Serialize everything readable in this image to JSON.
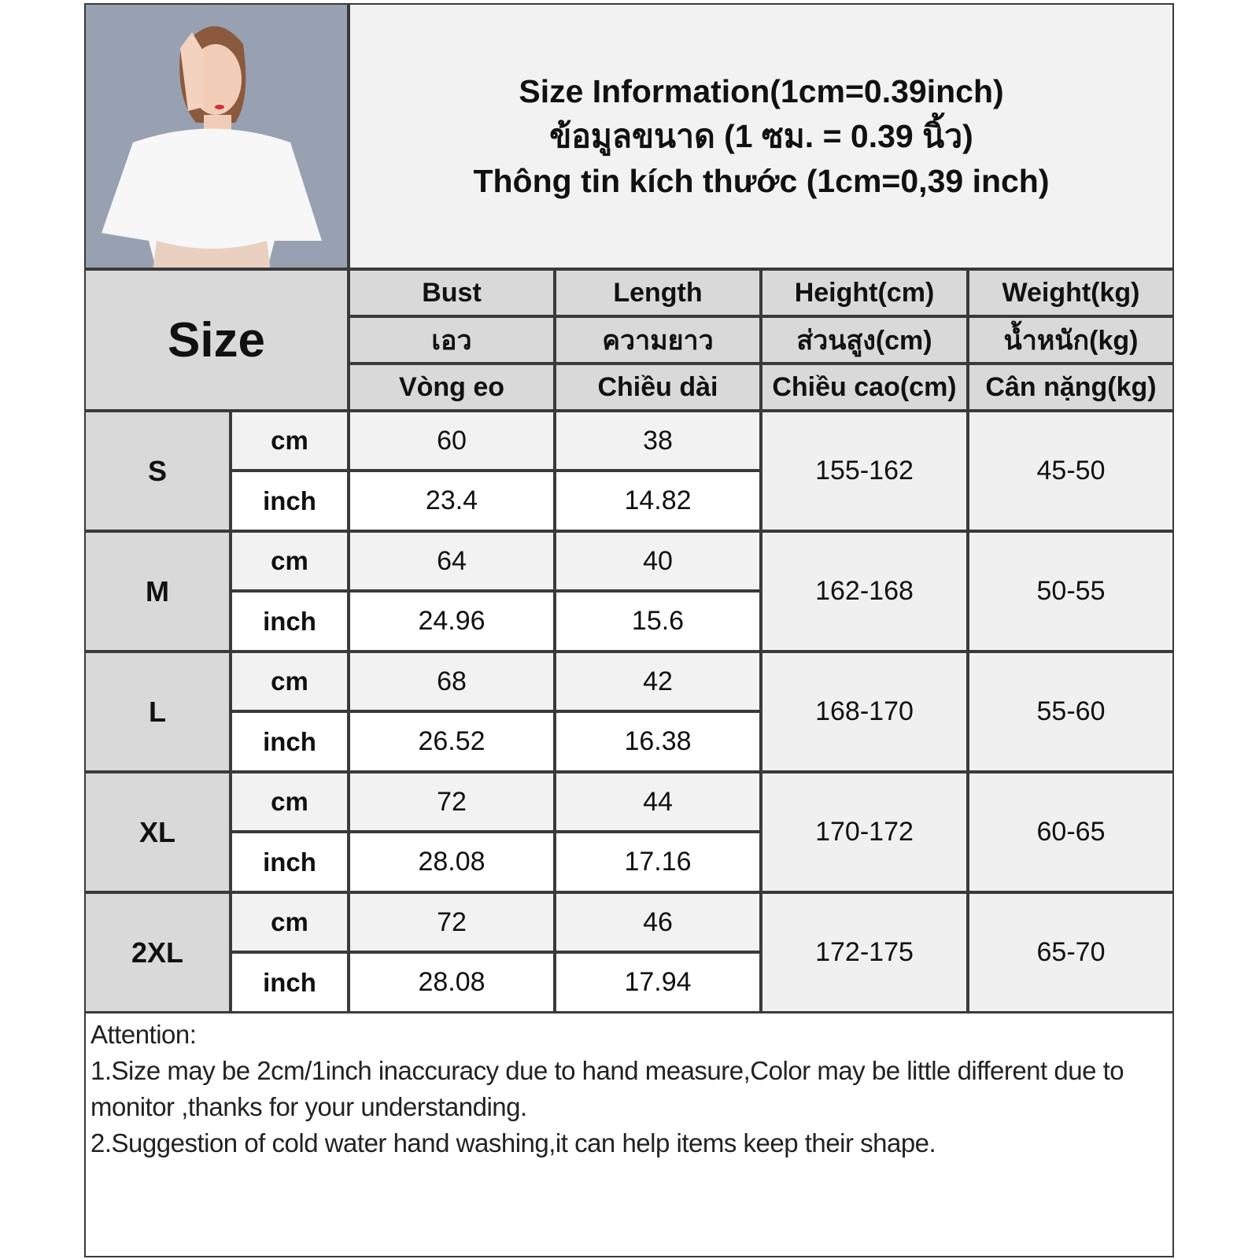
{
  "title_lines": [
    "Size Information(1cm=0.39inch)",
    "ข้อมูลขนาด (1 ซม. = 0.39 นิ้ว)",
    "Thông tin kích thước (1cm=0,39 inch)"
  ],
  "size_header": "Size",
  "columns": [
    {
      "en": "Bust",
      "th": "เอว",
      "vi": "Vòng eo"
    },
    {
      "en": "Length",
      "th": "ความยาว",
      "vi": "Chiều dài"
    },
    {
      "en": "Height(cm)",
      "th": "ส่วนสูง(cm)",
      "vi": "Chiều cao(cm)"
    },
    {
      "en": "Weight(kg)",
      "th": "น้ำหนัก(kg)",
      "vi": "Cân nặng(kg)"
    }
  ],
  "rows": [
    {
      "size": "S",
      "cm_label": "cm",
      "inch_label": "inch",
      "bust_cm": "60",
      "length_cm": "38",
      "bust_inch": "23.4",
      "length_inch": "14.82",
      "height": "155-162",
      "weight": "45-50"
    },
    {
      "size": "M",
      "cm_label": "cm",
      "inch_label": "inch",
      "bust_cm": "64",
      "length_cm": "40",
      "bust_inch": "24.96",
      "length_inch": "15.6",
      "height": "162-168",
      "weight": "50-55"
    },
    {
      "size": "L",
      "cm_label": "cm",
      "inch_label": "inch",
      "bust_cm": "68",
      "length_cm": "42",
      "bust_inch": "26.52",
      "length_inch": "16.38",
      "height": "168-170",
      "weight": "55-60"
    },
    {
      "size": "XL",
      "cm_label": "cm",
      "inch_label": "inch",
      "bust_cm": "72",
      "length_cm": "44",
      "bust_inch": "28.08",
      "length_inch": "17.16",
      "height": "170-172",
      "weight": "60-65"
    },
    {
      "size": "2XL",
      "cm_label": "cm",
      "inch_label": "inch",
      "bust_cm": "72",
      "length_cm": "46",
      "bust_inch": "28.08",
      "length_inch": "17.94",
      "height": "172-175",
      "weight": "65-70"
    }
  ],
  "notes": {
    "heading": "Attention:",
    "line1": "1.Size may be 2cm/1inch inaccuracy due to hand measure,Color may be little different due to monitor ,thanks for your understanding.",
    "line2": "2.Suggestion of cold water hand washing,it can help items keep their shape."
  }
}
